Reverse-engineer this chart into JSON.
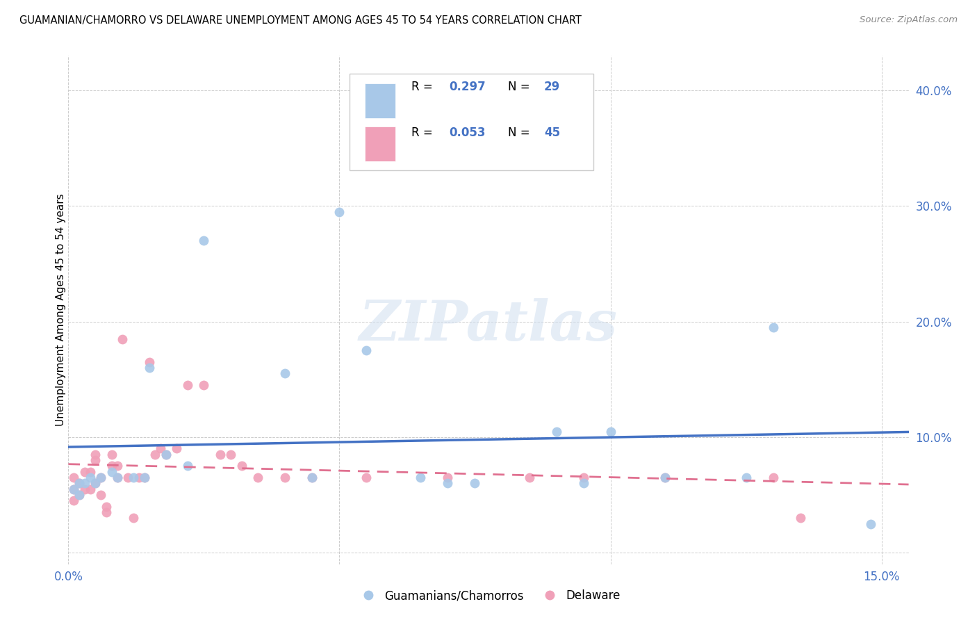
{
  "title": "GUAMANIAN/CHAMORRO VS DELAWARE UNEMPLOYMENT AMONG AGES 45 TO 54 YEARS CORRELATION CHART",
  "source": "Source: ZipAtlas.com",
  "ylabel": "Unemployment Among Ages 45 to 54 years",
  "xlim": [
    0.0,
    0.155
  ],
  "ylim": [
    -0.01,
    0.43
  ],
  "blue_R": 0.297,
  "blue_N": 29,
  "pink_R": 0.053,
  "pink_N": 45,
  "blue_color": "#a8c8e8",
  "pink_color": "#f0a0b8",
  "blue_line_color": "#4472c4",
  "pink_line_color": "#e07090",
  "legend_label_blue": "Guamanians/Chamorros",
  "legend_label_pink": "Delaware",
  "watermark": "ZIPatlas",
  "blue_points_x": [
    0.001,
    0.002,
    0.002,
    0.003,
    0.004,
    0.005,
    0.006,
    0.008,
    0.009,
    0.012,
    0.014,
    0.015,
    0.018,
    0.022,
    0.025,
    0.04,
    0.045,
    0.05,
    0.055,
    0.065,
    0.07,
    0.075,
    0.09,
    0.095,
    0.1,
    0.11,
    0.125,
    0.13,
    0.148
  ],
  "blue_points_y": [
    0.055,
    0.05,
    0.06,
    0.06,
    0.065,
    0.06,
    0.065,
    0.07,
    0.065,
    0.065,
    0.065,
    0.16,
    0.085,
    0.075,
    0.27,
    0.155,
    0.065,
    0.295,
    0.175,
    0.065,
    0.06,
    0.06,
    0.105,
    0.06,
    0.105,
    0.065,
    0.065,
    0.195,
    0.025
  ],
  "pink_points_x": [
    0.001,
    0.001,
    0.001,
    0.002,
    0.002,
    0.003,
    0.003,
    0.004,
    0.004,
    0.005,
    0.005,
    0.005,
    0.006,
    0.006,
    0.007,
    0.007,
    0.008,
    0.008,
    0.009,
    0.009,
    0.01,
    0.011,
    0.012,
    0.013,
    0.014,
    0.015,
    0.016,
    0.017,
    0.018,
    0.02,
    0.022,
    0.025,
    0.028,
    0.03,
    0.032,
    0.035,
    0.04,
    0.045,
    0.055,
    0.07,
    0.085,
    0.095,
    0.11,
    0.13,
    0.135
  ],
  "pink_points_y": [
    0.065,
    0.055,
    0.045,
    0.06,
    0.05,
    0.07,
    0.055,
    0.07,
    0.055,
    0.085,
    0.08,
    0.06,
    0.065,
    0.05,
    0.04,
    0.035,
    0.085,
    0.075,
    0.075,
    0.065,
    0.185,
    0.065,
    0.03,
    0.065,
    0.065,
    0.165,
    0.085,
    0.09,
    0.085,
    0.09,
    0.145,
    0.145,
    0.085,
    0.085,
    0.075,
    0.065,
    0.065,
    0.065,
    0.065,
    0.065,
    0.065,
    0.065,
    0.065,
    0.065,
    0.03
  ]
}
